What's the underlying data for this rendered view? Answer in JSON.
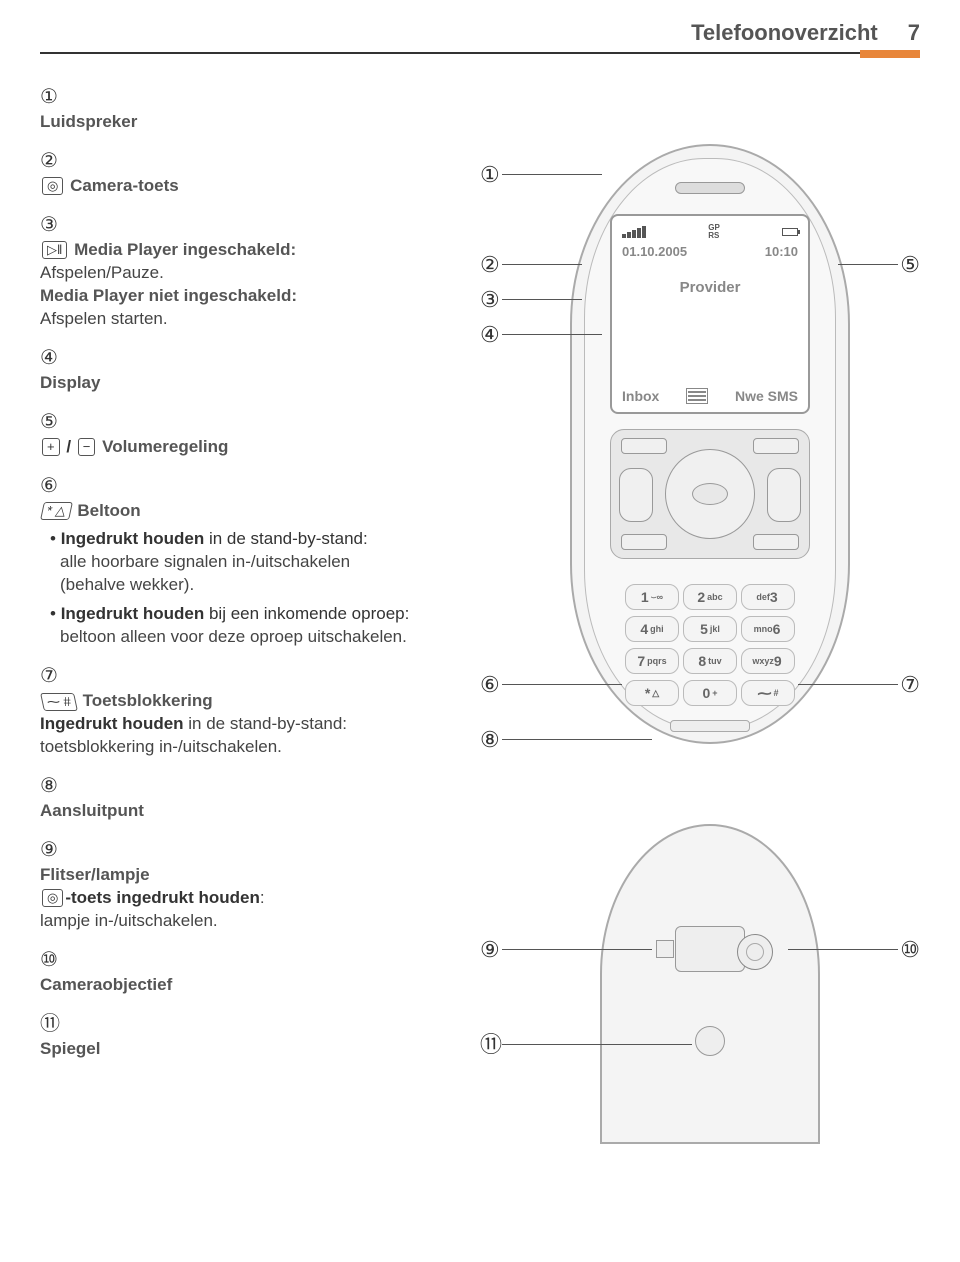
{
  "header": {
    "title": "Telefoonoverzicht",
    "page_number": "7"
  },
  "colors": {
    "accent": "#e8863a",
    "text": "#555555",
    "line": "#333333",
    "phone_stroke": "#aaaaaa"
  },
  "screen": {
    "date": "01.10.2005",
    "time": "10:10",
    "provider": "Provider",
    "left_softkey": "Inbox",
    "right_softkey": "Nwe SMS",
    "gprs": "GP\nRS"
  },
  "keypad": {
    "rows": [
      [
        {
          "n": "1",
          "l": "⌣∞"
        },
        {
          "n": "2",
          "l": "abc"
        },
        {
          "n": "",
          "l": "def",
          "n2": "3"
        }
      ],
      [
        {
          "n": "4",
          "l": "ghi"
        },
        {
          "n": "5",
          "l": "jkl"
        },
        {
          "n": "",
          "l": "mno",
          "n2": "6"
        }
      ],
      [
        {
          "n": "7",
          "l": "pqrs"
        },
        {
          "n": "8",
          "l": "tuv"
        },
        {
          "n": "",
          "l": "wxyz",
          "n2": "9"
        }
      ],
      [
        {
          "n": "*",
          "l": "△"
        },
        {
          "n": "0",
          "l": "+"
        },
        {
          "n": "⁓",
          "l": "#"
        }
      ]
    ]
  },
  "items": [
    {
      "num": "①",
      "title": "Luidspreker"
    },
    {
      "num": "②",
      "icon": "📷",
      "title": "Camera-toets"
    },
    {
      "num": "③",
      "icon": "▷‖",
      "title": "Media Player ingeschakeld:",
      "desc": "Afspelen/Pauze.",
      "desc2_bold": "Media Player niet ingeschakeld:",
      "desc2": "Afspelen starten."
    },
    {
      "num": "④",
      "title": "Display"
    },
    {
      "num": "⑤",
      "icon_pair": [
        "⊕",
        "⊖"
      ],
      "title": "Volumeregeling"
    },
    {
      "num": "⑥",
      "icon": "* △",
      "title": "Beltoon",
      "bullets": [
        {
          "bold": "Ingedrukt houden",
          "text": " in de stand-by-stand:",
          "line2": "alle hoorbare signalen in-/uitschakelen (behalve wekker)."
        },
        {
          "bold": "Ingedrukt houden",
          "text": " bij een inkomende oproep:",
          "line2": "beltoon alleen voor deze oproep uitschakelen."
        }
      ]
    },
    {
      "num": "⑦",
      "icon": "⁓ #",
      "title": "Toetsblokkering",
      "desc_bold": "Ingedrukt houden",
      "desc": " in de stand-by-stand:",
      "desc2": "toetsblokkering in-/uitschakelen."
    },
    {
      "num": "⑧",
      "title": "Aansluitpunt"
    },
    {
      "num": "⑨",
      "title": "Flitser/lampje",
      "desc_icon": "📷",
      "desc_bold": "-toets ingedrukt houden",
      "desc": ":",
      "desc2": "lampje in-/uitschakelen."
    },
    {
      "num": "⑩",
      "title": "Cameraobjectief"
    },
    {
      "num": "⑪",
      "title": "Spiegel"
    }
  ],
  "callouts": {
    "c1": "①",
    "c2": "②",
    "c3": "③",
    "c4": "④",
    "c5": "⑤",
    "c6": "⑥",
    "c7": "⑦",
    "c8": "⑧",
    "c9": "⑨",
    "c10": "⑩",
    "c11": "⑪"
  }
}
